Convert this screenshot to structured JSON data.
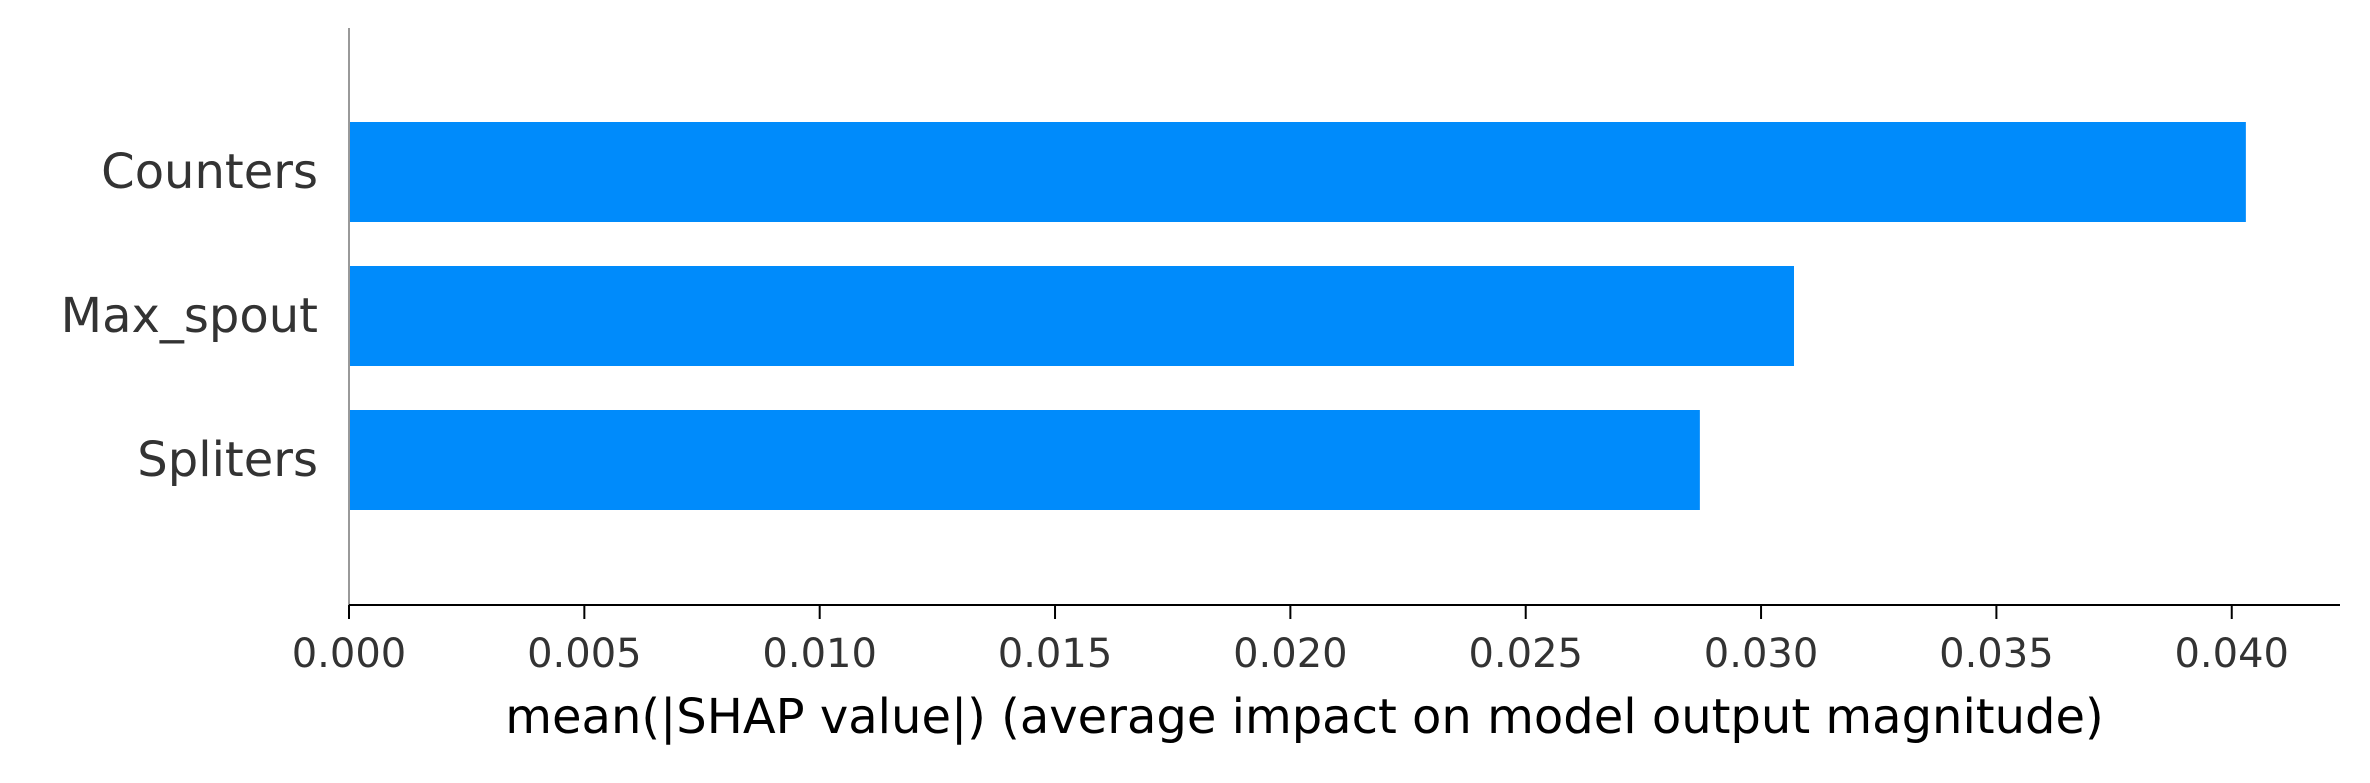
{
  "chart_data": {
    "type": "bar",
    "orientation": "horizontal",
    "categories": [
      "Counters",
      "Max_spout",
      "Spliters"
    ],
    "values": [
      0.0403,
      0.0307,
      0.0287
    ],
    "title": "",
    "xlabel": "mean(|SHAP value|) (average impact on model output magnitude)",
    "ylabel": "",
    "xlim": [
      0.0,
      0.0423
    ],
    "xticks": [
      0.0,
      0.005,
      0.01,
      0.015,
      0.02,
      0.025,
      0.03,
      0.035,
      0.04
    ],
    "xtick_labels": [
      "0.000",
      "0.005",
      "0.010",
      "0.015",
      "0.020",
      "0.025",
      "0.030",
      "0.035",
      "0.040"
    ],
    "bar_color": "#008bfb",
    "grid": false,
    "legend": "none"
  },
  "colors": {
    "bar": "#008bfb",
    "axis": "#000000",
    "left_spine": "#999999",
    "tick_label": "#333333",
    "xlabel": "#000000"
  }
}
